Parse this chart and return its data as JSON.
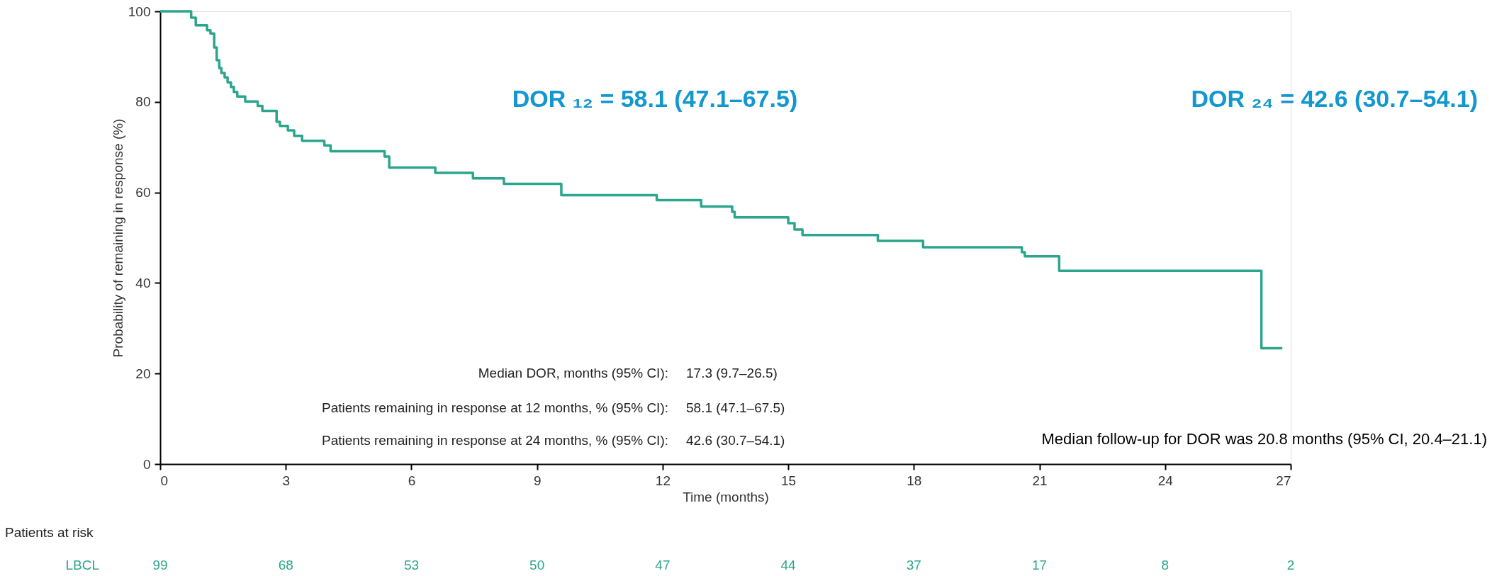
{
  "chart_data": {
    "type": "step",
    "xlabel": "Time (months)",
    "ylabel": "Probability of remaining in response (%)",
    "xlim": [
      0,
      27
    ],
    "xticks": [
      0,
      3,
      6,
      9,
      12,
      15,
      18,
      21,
      24,
      27
    ],
    "ylim": [
      0,
      100
    ],
    "yticks": [
      0,
      20,
      40,
      60,
      80,
      100
    ],
    "grid": false,
    "marker": "none",
    "line_style": "solid",
    "series": [
      {
        "color": "#2ca58d",
        "x": [
          0,
          0.74,
          0.85,
          1.12,
          1.2,
          1.29,
          1.35,
          1.41,
          1.46,
          1.54,
          1.61,
          1.69,
          1.76,
          1.84,
          2.03,
          2.33,
          2.44,
          2.78,
          2.86,
          3.05,
          3.2,
          3.39,
          3.92,
          4.07,
          5.36,
          5.47,
          6.57,
          7.47,
          8.21,
          9.58,
          11.86,
          12.92,
          13.66,
          13.72,
          15.0,
          15.15,
          15.34,
          17.14,
          18.22,
          20.58,
          20.65,
          21.47,
          26.3,
          26.8
        ],
        "values": [
          100,
          98.6,
          96.9,
          95.8,
          95.1,
          92,
          89.2,
          87.5,
          86.4,
          85.4,
          84.3,
          83.3,
          82.2,
          81.2,
          80.1,
          79.1,
          78,
          75.6,
          74.7,
          73.7,
          72.5,
          71.4,
          70.4,
          69.1,
          67.9,
          65.5,
          64.3,
          63.1,
          61.9,
          59.4,
          58.3,
          56.9,
          55.7,
          54.5,
          53.2,
          51.8,
          50.6,
          49.3,
          47.9,
          46.8,
          45.9,
          42.7,
          25.6,
          25.6
        ]
      }
    ],
    "annotations": [
      "DOR ₁₂ = 58.1 (47.1–67.5)",
      "DOR ₂₄ = 42.6 (30.7–54.1)",
      "Median DOR, months (95% CI):",
      "17.3 (9.7–26.5)",
      "Patients remaining in response at 12 months, % (95% CI):",
      "58.1 (47.1–67.5)",
      "Patients remaining in response at 24 months, % (95% CI):",
      "42.6 (30.7–54.1)",
      "Median follow-up for DOR was 20.8 months (95% CI, 20.4–21.1)",
      "Patients at risk",
      "LBCL",
      "99",
      "68",
      "53",
      "50",
      "47",
      "44",
      "37",
      "17",
      "8",
      "2"
    ]
  }
}
